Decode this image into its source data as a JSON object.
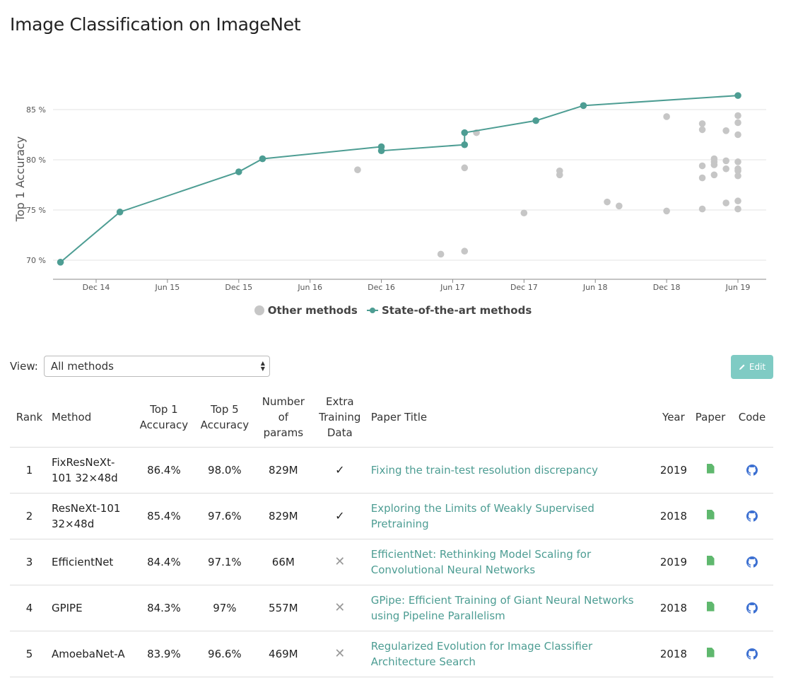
{
  "title": "Image Classification on ImageNet",
  "colors": {
    "sota": "#4d9d93",
    "other": "#c6c6c6",
    "link": "#4d9d93",
    "edit_button": "#7fcbc4",
    "paper_icon": "#5fb86e",
    "code_icon": "#3b6fd1"
  },
  "chart_data": {
    "type": "scatter",
    "ylabel": "Top 1 Accuracy",
    "xlabel": "",
    "ylim": [
      68.8,
      87.5
    ],
    "x_ticks": [
      "Dec 14",
      "Jun 15",
      "Dec 15",
      "Jun 16",
      "Dec 16",
      "Jun 17",
      "Dec 17",
      "Jun 18",
      "Dec 18",
      "Jun 19"
    ],
    "y_ticks": [
      "70 %",
      "75 %",
      "80 %",
      "85 %"
    ],
    "grid": true,
    "legend_position": "bottom-center",
    "legend": [
      "Other methods",
      "State-of-the-art methods"
    ],
    "series": [
      {
        "name": "State-of-the-art methods",
        "style": "line+markers",
        "points": [
          [
            "2014-09",
            69.8
          ],
          [
            "2015-02",
            74.8
          ],
          [
            "2015-12",
            78.8
          ],
          [
            "2016-02",
            80.1
          ],
          [
            "2016-12",
            81.3
          ],
          [
            "2016-12",
            80.9
          ],
          [
            "2017-07",
            81.5
          ],
          [
            "2017-07",
            82.7
          ],
          [
            "2018-01",
            83.9
          ],
          [
            "2018-05",
            85.4
          ],
          [
            "2019-06",
            86.4
          ]
        ]
      },
      {
        "name": "Other methods",
        "style": "markers",
        "points": [
          [
            "2016-10",
            79.0
          ],
          [
            "2017-05",
            70.6
          ],
          [
            "2017-07",
            70.9
          ],
          [
            "2017-07",
            79.2
          ],
          [
            "2017-08",
            82.7
          ],
          [
            "2017-12",
            74.7
          ],
          [
            "2018-03",
            78.9
          ],
          [
            "2018-03",
            78.5
          ],
          [
            "2018-07",
            75.8
          ],
          [
            "2018-08",
            75.4
          ],
          [
            "2018-12",
            84.3
          ],
          [
            "2018-12",
            74.9
          ],
          [
            "2019-03",
            83.6
          ],
          [
            "2019-03",
            83.0
          ],
          [
            "2019-03",
            79.4
          ],
          [
            "2019-03",
            78.2
          ],
          [
            "2019-03",
            75.1
          ],
          [
            "2019-04",
            79.8
          ],
          [
            "2019-04",
            78.5
          ],
          [
            "2019-04",
            80.1
          ],
          [
            "2019-04",
            79.5
          ],
          [
            "2019-05",
            82.9
          ],
          [
            "2019-05",
            79.9
          ],
          [
            "2019-05",
            79.1
          ],
          [
            "2019-05",
            75.7
          ],
          [
            "2019-06",
            78.4
          ],
          [
            "2019-06",
            78.9
          ],
          [
            "2019-06",
            84.4
          ],
          [
            "2019-06",
            75.1
          ],
          [
            "2019-06",
            83.7
          ],
          [
            "2019-06",
            82.5
          ],
          [
            "2019-06",
            79.8
          ],
          [
            "2019-06",
            79.1
          ],
          [
            "2019-06",
            75.9
          ]
        ]
      }
    ]
  },
  "view": {
    "label": "View:",
    "selected": "All methods"
  },
  "edit_button": {
    "label": "Edit",
    "icon": "pencil-icon"
  },
  "table": {
    "headers": {
      "rank": "Rank",
      "method": "Method",
      "top1_line1": "Top 1",
      "top1_line2": "Accuracy",
      "top5_line1": "Top 5",
      "top5_line2": "Accuracy",
      "params_line1": "Number",
      "params_line2": "of",
      "params_line3": "params",
      "extra_line1": "Extra",
      "extra_line2": "Training",
      "extra_line3": "Data",
      "paper_title": "Paper Title",
      "year": "Year",
      "paper": "Paper",
      "code": "Code"
    },
    "rows": [
      {
        "rank": "1",
        "method": "FixResNeXt-101 32×48d",
        "top1": "86.4%",
        "top5": "98.0%",
        "params": "829M",
        "extra": "✓",
        "paper_title": "Fixing the train-test resolution discrepancy",
        "year": "2019"
      },
      {
        "rank": "2",
        "method": "ResNeXt-101 32×48d",
        "top1": "85.4%",
        "top5": "97.6%",
        "params": "829M",
        "extra": "✓",
        "paper_title": "Exploring the Limits of Weakly Supervised Pretraining",
        "year": "2018"
      },
      {
        "rank": "3",
        "method": "EfficientNet",
        "top1": "84.4%",
        "top5": "97.1%",
        "params": "66M",
        "extra": "✕",
        "paper_title": "EfficientNet: Rethinking Model Scaling for Convolutional Neural Networks",
        "year": "2019"
      },
      {
        "rank": "4",
        "method": "GPIPE",
        "top1": "84.3%",
        "top5": "97%",
        "params": "557M",
        "extra": "✕",
        "paper_title": "GPipe: Efficient Training of Giant Neural Networks using Pipeline Parallelism",
        "year": "2018"
      },
      {
        "rank": "5",
        "method": "AmoebaNet-A",
        "top1": "83.9%",
        "top5": "96.6%",
        "params": "469M",
        "extra": "✕",
        "paper_title": "Regularized Evolution for Image Classifier Architecture Search",
        "year": "2018"
      }
    ]
  }
}
